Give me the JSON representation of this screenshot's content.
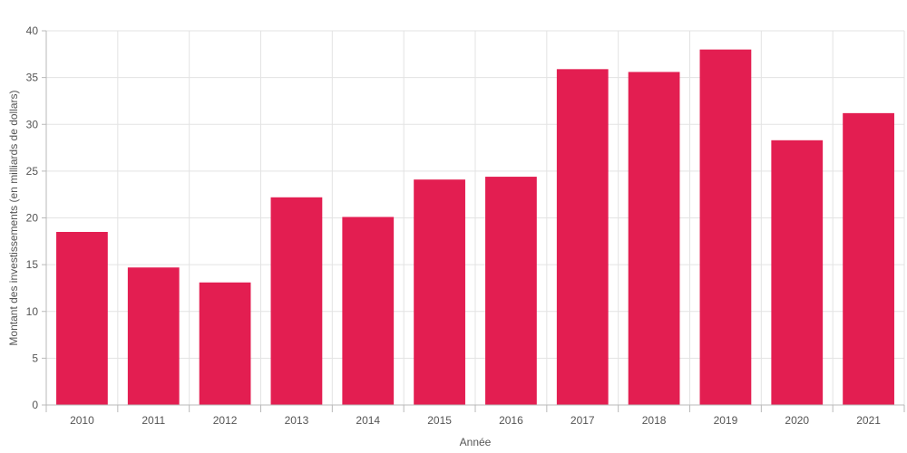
{
  "chart_data": {
    "type": "bar",
    "title": "",
    "xlabel": "Année",
    "ylabel": "Montant des investissements (en milliards de dollars)",
    "categories": [
      "2010",
      "2011",
      "2012",
      "2013",
      "2014",
      "2015",
      "2016",
      "2017",
      "2018",
      "2019",
      "2020",
      "2021"
    ],
    "values": [
      18.5,
      14.7,
      13.1,
      22.2,
      20.1,
      24.1,
      24.4,
      35.9,
      35.6,
      38.0,
      28.3,
      31.2
    ],
    "ylim": [
      0,
      40
    ],
    "yticks": [
      "0",
      "5",
      "10",
      "15",
      "20",
      "25",
      "30",
      "35",
      "40"
    ],
    "bar_color": "#e31e51",
    "grid": true,
    "legend": "none"
  }
}
